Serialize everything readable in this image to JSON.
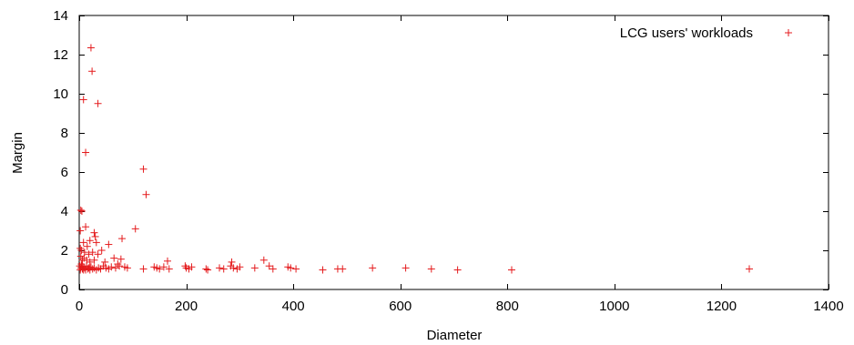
{
  "chart_data": {
    "type": "scatter",
    "title": "",
    "xlabel": "Diameter",
    "ylabel": "Margin",
    "xlim": [
      0,
      1400
    ],
    "ylim": [
      0,
      14
    ],
    "x_ticks": [
      0,
      200,
      400,
      600,
      800,
      1000,
      1200,
      1400
    ],
    "y_ticks": [
      0,
      2,
      4,
      6,
      8,
      10,
      12,
      14
    ],
    "grid": false,
    "legend_position": "top-right",
    "marker": "plus",
    "color": "#e41a1c",
    "series": [
      {
        "name": "LCG users' workloads",
        "points": [
          [
            22,
            12.35
          ],
          [
            24,
            11.15
          ],
          [
            8,
            9.7
          ],
          [
            35,
            9.5
          ],
          [
            12,
            7.0
          ],
          [
            120,
            6.15
          ],
          [
            125,
            4.85
          ],
          [
            3,
            4.05
          ],
          [
            5,
            4.0
          ],
          [
            105,
            3.1
          ],
          [
            12,
            3.2
          ],
          [
            2,
            3.0
          ],
          [
            28,
            2.9
          ],
          [
            30,
            2.7
          ],
          [
            20,
            2.5
          ],
          [
            80,
            2.6
          ],
          [
            8,
            2.4
          ],
          [
            15,
            2.2
          ],
          [
            55,
            2.3
          ],
          [
            32,
            2.4
          ],
          [
            2,
            2.1
          ],
          [
            4,
            2.0
          ],
          [
            10,
            1.9
          ],
          [
            18,
            1.8
          ],
          [
            25,
            1.9
          ],
          [
            35,
            1.8
          ],
          [
            42,
            2.0
          ],
          [
            65,
            1.6
          ],
          [
            78,
            1.55
          ],
          [
            165,
            1.45
          ],
          [
            345,
            1.5
          ],
          [
            285,
            1.4
          ],
          [
            3,
            1.7
          ],
          [
            6,
            1.5
          ],
          [
            9,
            1.6
          ],
          [
            14,
            1.5
          ],
          [
            20,
            1.4
          ],
          [
            28,
            1.5
          ],
          [
            48,
            1.4
          ],
          [
            72,
            1.3
          ],
          [
            1,
            1.2
          ],
          [
            2,
            1.0
          ],
          [
            3,
            1.1
          ],
          [
            4,
            1.3
          ],
          [
            5,
            1.2
          ],
          [
            6,
            1.05
          ],
          [
            7,
            1.15
          ],
          [
            8,
            1.0
          ],
          [
            10,
            1.1
          ],
          [
            12,
            1.0
          ],
          [
            14,
            1.2
          ],
          [
            16,
            1.05
          ],
          [
            18,
            1.1
          ],
          [
            20,
            1.0
          ],
          [
            22,
            1.15
          ],
          [
            25,
            1.05
          ],
          [
            28,
            1.1
          ],
          [
            32,
            1.0
          ],
          [
            36,
            1.1
          ],
          [
            40,
            1.05
          ],
          [
            45,
            1.2
          ],
          [
            50,
            1.1
          ],
          [
            55,
            1.05
          ],
          [
            60,
            1.15
          ],
          [
            68,
            1.1
          ],
          [
            75,
            1.2
          ],
          [
            85,
            1.15
          ],
          [
            90,
            1.1
          ],
          [
            120,
            1.05
          ],
          [
            140,
            1.15
          ],
          [
            145,
            1.1
          ],
          [
            150,
            1.05
          ],
          [
            158,
            1.15
          ],
          [
            168,
            1.05
          ],
          [
            198,
            1.2
          ],
          [
            200,
            1.1
          ],
          [
            205,
            1.05
          ],
          [
            210,
            1.15
          ],
          [
            237,
            1.05
          ],
          [
            240,
            1.0
          ],
          [
            262,
            1.1
          ],
          [
            270,
            1.05
          ],
          [
            283,
            1.2
          ],
          [
            288,
            1.1
          ],
          [
            295,
            1.05
          ],
          [
            300,
            1.15
          ],
          [
            328,
            1.1
          ],
          [
            355,
            1.2
          ],
          [
            362,
            1.05
          ],
          [
            390,
            1.15
          ],
          [
            395,
            1.1
          ],
          [
            405,
            1.05
          ],
          [
            455,
            1.0
          ],
          [
            483,
            1.05
          ],
          [
            492,
            1.05
          ],
          [
            548,
            1.1
          ],
          [
            610,
            1.1
          ],
          [
            658,
            1.05
          ],
          [
            707,
            1.0
          ],
          [
            808,
            1.0
          ],
          [
            1252,
            1.05
          ]
        ]
      }
    ]
  }
}
